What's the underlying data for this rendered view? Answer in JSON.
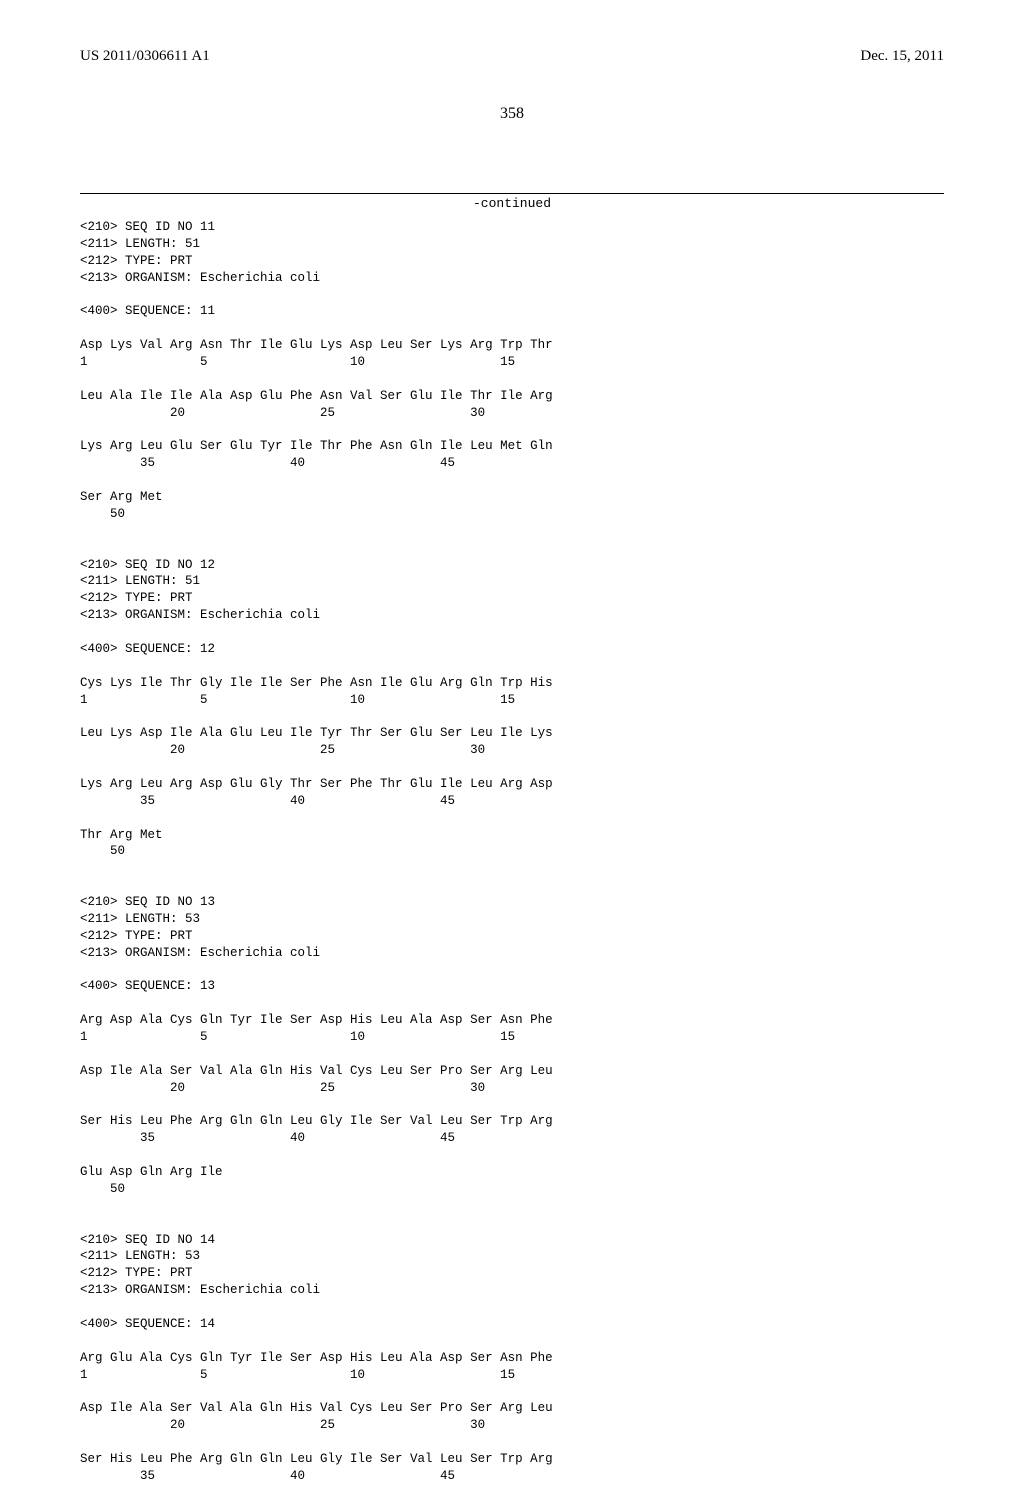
{
  "header": {
    "pub_no": "US 2011/0306611 A1",
    "pub_date": "Dec. 15, 2011"
  },
  "page_number": "358",
  "continued_label": "-continued",
  "sequences": [
    {
      "seq_id": "<210> SEQ ID NO 11",
      "length": "<211> LENGTH: 51",
      "type": "<212> TYPE: PRT",
      "org": "<213> ORGANISM: Escherichia coli",
      "seq_hdr": "<400> SEQUENCE: 11",
      "lines": [
        "Asp Lys Val Arg Asn Thr Ile Glu Lys Asp Leu Ser Lys Arg Trp Thr",
        "1               5                   10                  15",
        "",
        "Leu Ala Ile Ile Ala Asp Glu Phe Asn Val Ser Glu Ile Thr Ile Arg",
        "            20                  25                  30",
        "",
        "Lys Arg Leu Glu Ser Glu Tyr Ile Thr Phe Asn Gln Ile Leu Met Gln",
        "        35                  40                  45",
        "",
        "Ser Arg Met",
        "    50"
      ]
    },
    {
      "seq_id": "<210> SEQ ID NO 12",
      "length": "<211> LENGTH: 51",
      "type": "<212> TYPE: PRT",
      "org": "<213> ORGANISM: Escherichia coli",
      "seq_hdr": "<400> SEQUENCE: 12",
      "lines": [
        "Cys Lys Ile Thr Gly Ile Ile Ser Phe Asn Ile Glu Arg Gln Trp His",
        "1               5                   10                  15",
        "",
        "Leu Lys Asp Ile Ala Glu Leu Ile Tyr Thr Ser Glu Ser Leu Ile Lys",
        "            20                  25                  30",
        "",
        "Lys Arg Leu Arg Asp Glu Gly Thr Ser Phe Thr Glu Ile Leu Arg Asp",
        "        35                  40                  45",
        "",
        "Thr Arg Met",
        "    50"
      ]
    },
    {
      "seq_id": "<210> SEQ ID NO 13",
      "length": "<211> LENGTH: 53",
      "type": "<212> TYPE: PRT",
      "org": "<213> ORGANISM: Escherichia coli",
      "seq_hdr": "<400> SEQUENCE: 13",
      "lines": [
        "Arg Asp Ala Cys Gln Tyr Ile Ser Asp His Leu Ala Asp Ser Asn Phe",
        "1               5                   10                  15",
        "",
        "Asp Ile Ala Ser Val Ala Gln His Val Cys Leu Ser Pro Ser Arg Leu",
        "            20                  25                  30",
        "",
        "Ser His Leu Phe Arg Gln Gln Leu Gly Ile Ser Val Leu Ser Trp Arg",
        "        35                  40                  45",
        "",
        "Glu Asp Gln Arg Ile",
        "    50"
      ]
    },
    {
      "seq_id": "<210> SEQ ID NO 14",
      "length": "<211> LENGTH: 53",
      "type": "<212> TYPE: PRT",
      "org": "<213> ORGANISM: Escherichia coli",
      "seq_hdr": "<400> SEQUENCE: 14",
      "lines": [
        "Arg Glu Ala Cys Gln Tyr Ile Ser Asp His Leu Ala Asp Ser Asn Phe",
        "1               5                   10                  15",
        "",
        "Asp Ile Ala Ser Val Ala Gln His Val Cys Leu Ser Pro Ser Arg Leu",
        "            20                  25                  30",
        "",
        "Ser His Leu Phe Arg Gln Gln Leu Gly Ile Ser Val Leu Ser Trp Arg",
        "        35                  40                  45"
      ]
    }
  ]
}
